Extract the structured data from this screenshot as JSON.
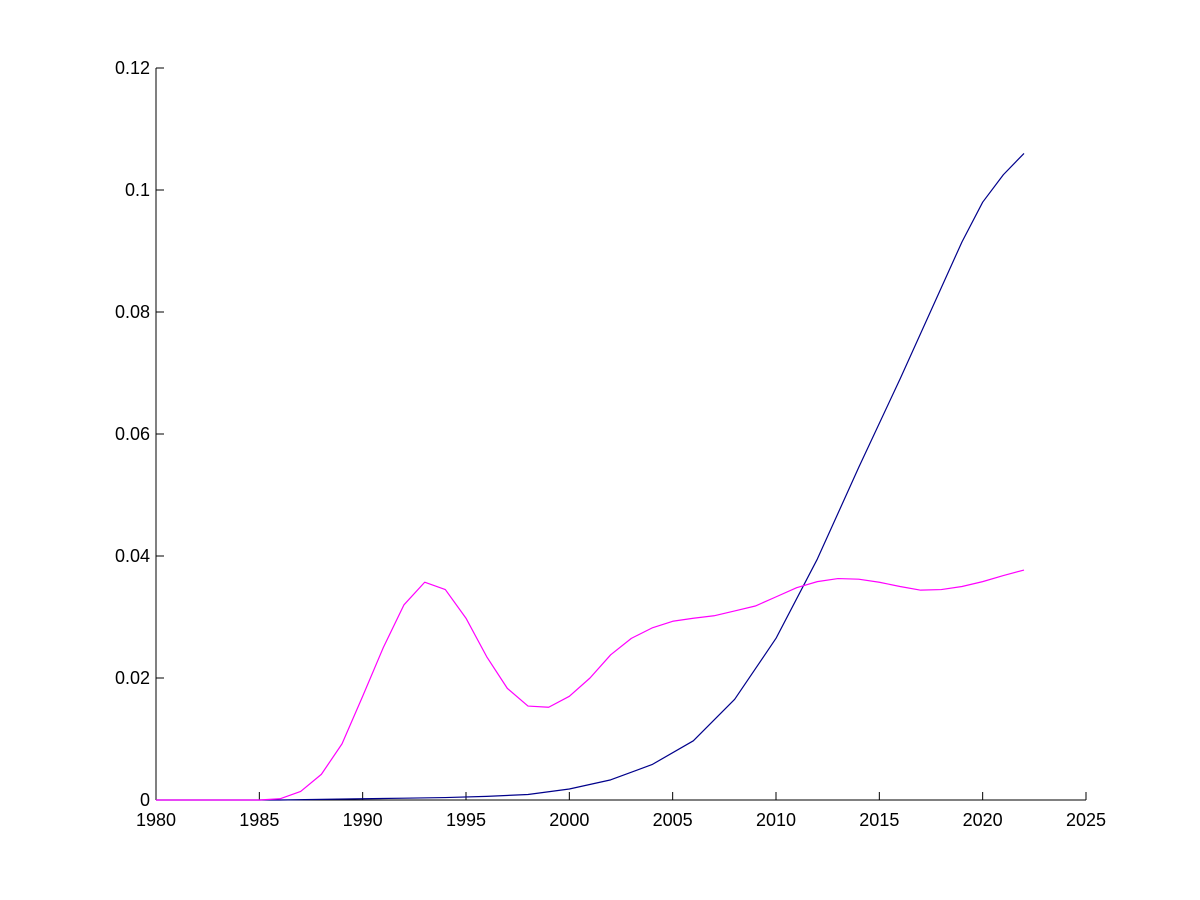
{
  "chart_data": {
    "type": "line",
    "title": "",
    "xlabel": "",
    "ylabel": "",
    "xlim": [
      1980,
      2025
    ],
    "ylim": [
      0,
      0.12
    ],
    "xticks": [
      1980,
      1985,
      1990,
      1995,
      2000,
      2005,
      2010,
      2015,
      2020,
      2025
    ],
    "yticks": [
      0,
      0.02,
      0.04,
      0.06,
      0.08,
      0.1,
      0.12
    ],
    "grid": false,
    "legend": "none",
    "series": [
      {
        "color": "#00008B",
        "x": [
          1980,
          1982,
          1984,
          1986,
          1988,
          1990,
          1992,
          1994,
          1996,
          1998,
          2000,
          2002,
          2004,
          2006,
          2008,
          2010,
          2012,
          2014,
          2016,
          2018,
          2019,
          2020,
          2021,
          2022
        ],
        "y": [
          0,
          0,
          0,
          0,
          0.0001,
          0.0002,
          0.0003,
          0.0004,
          0.0006,
          0.0009,
          0.0018,
          0.0033,
          0.0058,
          0.0097,
          0.0165,
          0.0265,
          0.0395,
          0.0545,
          0.069,
          0.084,
          0.0915,
          0.098,
          0.1025,
          0.106
        ]
      },
      {
        "color": "#FF00FF",
        "x": [
          1980,
          1985,
          1986,
          1987,
          1988,
          1989,
          1990,
          1991,
          1992,
          1993,
          1994,
          1995,
          1996,
          1997,
          1998,
          1999,
          2000,
          2001,
          2002,
          2003,
          2004,
          2005,
          2006,
          2007,
          2008,
          2009,
          2010,
          2011,
          2012,
          2013,
          2014,
          2015,
          2016,
          2017,
          2018,
          2019,
          2020,
          2021,
          2022
        ],
        "y": [
          0,
          0,
          0.0002,
          0.0014,
          0.0042,
          0.0092,
          0.017,
          0.025,
          0.032,
          0.0357,
          0.0345,
          0.0298,
          0.0235,
          0.0183,
          0.0154,
          0.0152,
          0.017,
          0.02,
          0.0238,
          0.0265,
          0.0282,
          0.0293,
          0.0298,
          0.0302,
          0.031,
          0.0318,
          0.0333,
          0.0348,
          0.0358,
          0.0363,
          0.0362,
          0.0357,
          0.035,
          0.0344,
          0.0345,
          0.035,
          0.0358,
          0.0368,
          0.0377
        ]
      }
    ]
  }
}
